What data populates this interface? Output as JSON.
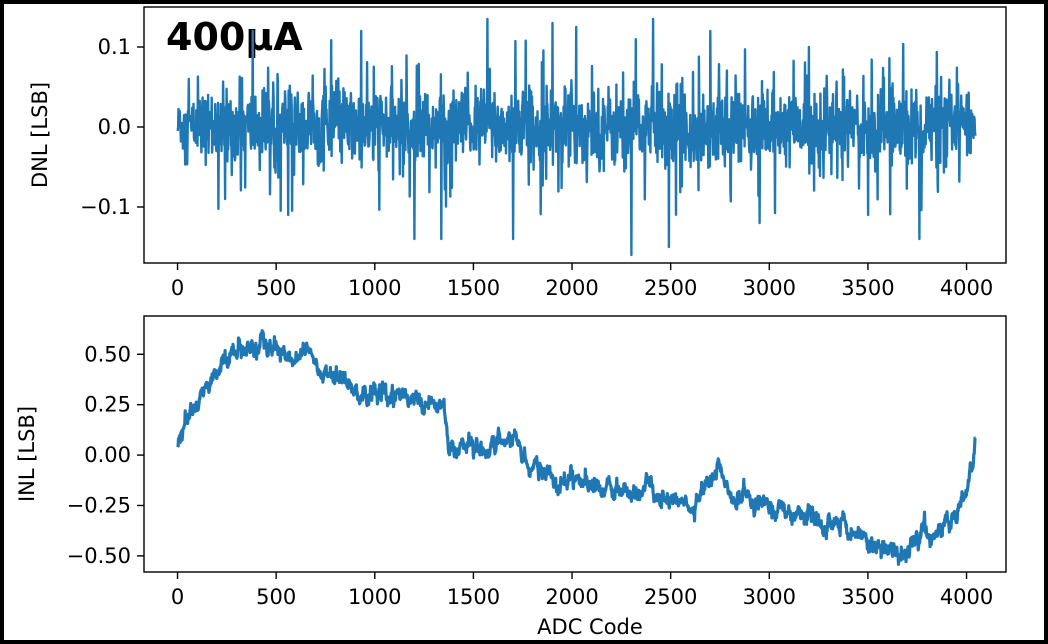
{
  "chart_data": [
    {
      "type": "line",
      "title": "400μA",
      "xlabel": "",
      "ylabel": "DNL [LSB]",
      "xlim": [
        -170,
        4200
      ],
      "ylim": [
        -0.17,
        0.15
      ],
      "xticks": [
        0,
        500,
        1000,
        1500,
        2000,
        2500,
        3000,
        3500,
        4000
      ],
      "xtick_labels": [
        "0",
        "500",
        "1000",
        "1500",
        "2000",
        "2500",
        "3000",
        "3500",
        "4000"
      ],
      "yticks": [
        -0.1,
        0.0,
        0.1
      ],
      "ytick_labels": [
        "−0.1",
        "0.0",
        "0.1"
      ],
      "grid": false,
      "color": "#1f77b4",
      "series": [
        {
          "x_range": [
            1,
            4046
          ],
          "noise_amplitude": 0.045,
          "notable_points": [
            {
              "x": 10,
              "y": 0.02
            },
            {
              "x": 55,
              "y": 0.06
            },
            {
              "x": 240,
              "y": -0.09
            },
            {
              "x": 380,
              "y": 0.12
            },
            {
              "x": 560,
              "y": -0.11
            },
            {
              "x": 930,
              "y": 0.12
            },
            {
              "x": 1200,
              "y": -0.14
            },
            {
              "x": 1335,
              "y": -0.14
            },
            {
              "x": 1570,
              "y": 0.135
            },
            {
              "x": 1700,
              "y": -0.14
            },
            {
              "x": 1900,
              "y": 0.13
            },
            {
              "x": 2020,
              "y": 0.125
            },
            {
              "x": 2300,
              "y": -0.16
            },
            {
              "x": 2410,
              "y": 0.135
            },
            {
              "x": 2490,
              "y": -0.15
            },
            {
              "x": 2700,
              "y": 0.12
            },
            {
              "x": 2950,
              "y": -0.12
            },
            {
              "x": 3200,
              "y": 0.1
            },
            {
              "x": 3500,
              "y": -0.11
            },
            {
              "x": 3760,
              "y": -0.14
            },
            {
              "x": 4000,
              "y": 0.04
            }
          ]
        }
      ]
    },
    {
      "type": "line",
      "title": "",
      "xlabel": "ADC Code",
      "ylabel": "INL [LSB]",
      "xlim": [
        -170,
        4200
      ],
      "ylim": [
        -0.58,
        0.69
      ],
      "xticks": [
        0,
        500,
        1000,
        1500,
        2000,
        2500,
        3000,
        3500,
        4000
      ],
      "xtick_labels": [
        "0",
        "500",
        "1000",
        "1500",
        "2000",
        "2500",
        "3000",
        "3500",
        "4000"
      ],
      "yticks": [
        -0.5,
        -0.25,
        0.0,
        0.25,
        0.5
      ],
      "ytick_labels": [
        "−0.50",
        "−0.25",
        "0.00",
        "0.25",
        "0.50"
      ],
      "grid": false,
      "color": "#1f77b4",
      "series": [
        {
          "x_range": [
            1,
            4046
          ],
          "noise_amplitude": 0.028,
          "trend": [
            {
              "x": 0,
              "y": 0.05
            },
            {
              "x": 60,
              "y": 0.2
            },
            {
              "x": 150,
              "y": 0.35
            },
            {
              "x": 250,
              "y": 0.47
            },
            {
              "x": 350,
              "y": 0.56
            },
            {
              "x": 450,
              "y": 0.54
            },
            {
              "x": 550,
              "y": 0.5
            },
            {
              "x": 650,
              "y": 0.52
            },
            {
              "x": 750,
              "y": 0.4
            },
            {
              "x": 850,
              "y": 0.37
            },
            {
              "x": 950,
              "y": 0.3
            },
            {
              "x": 1050,
              "y": 0.28
            },
            {
              "x": 1150,
              "y": 0.3
            },
            {
              "x": 1250,
              "y": 0.27
            },
            {
              "x": 1350,
              "y": 0.24
            },
            {
              "x": 1380,
              "y": 0.03
            },
            {
              "x": 1500,
              "y": 0.05
            },
            {
              "x": 1600,
              "y": 0.02
            },
            {
              "x": 1700,
              "y": 0.07
            },
            {
              "x": 1800,
              "y": -0.05
            },
            {
              "x": 1900,
              "y": -0.1
            },
            {
              "x": 2000,
              "y": -0.12
            },
            {
              "x": 2100,
              "y": -0.15
            },
            {
              "x": 2200,
              "y": -0.15
            },
            {
              "x": 2300,
              "y": -0.18
            },
            {
              "x": 2400,
              "y": -0.15
            },
            {
              "x": 2500,
              "y": -0.22
            },
            {
              "x": 2600,
              "y": -0.28
            },
            {
              "x": 2700,
              "y": -0.1
            },
            {
              "x": 2750,
              "y": -0.05
            },
            {
              "x": 2800,
              "y": -0.18
            },
            {
              "x": 2900,
              "y": -0.22
            },
            {
              "x": 3000,
              "y": -0.25
            },
            {
              "x": 3100,
              "y": -0.3
            },
            {
              "x": 3200,
              "y": -0.3
            },
            {
              "x": 3300,
              "y": -0.35
            },
            {
              "x": 3400,
              "y": -0.4
            },
            {
              "x": 3500,
              "y": -0.42
            },
            {
              "x": 3600,
              "y": -0.48
            },
            {
              "x": 3680,
              "y": -0.5
            },
            {
              "x": 3750,
              "y": -0.42
            },
            {
              "x": 3850,
              "y": -0.4
            },
            {
              "x": 3950,
              "y": -0.3
            },
            {
              "x": 4000,
              "y": -0.18
            },
            {
              "x": 4030,
              "y": -0.05
            },
            {
              "x": 4046,
              "y": 0.07
            }
          ]
        }
      ]
    }
  ]
}
